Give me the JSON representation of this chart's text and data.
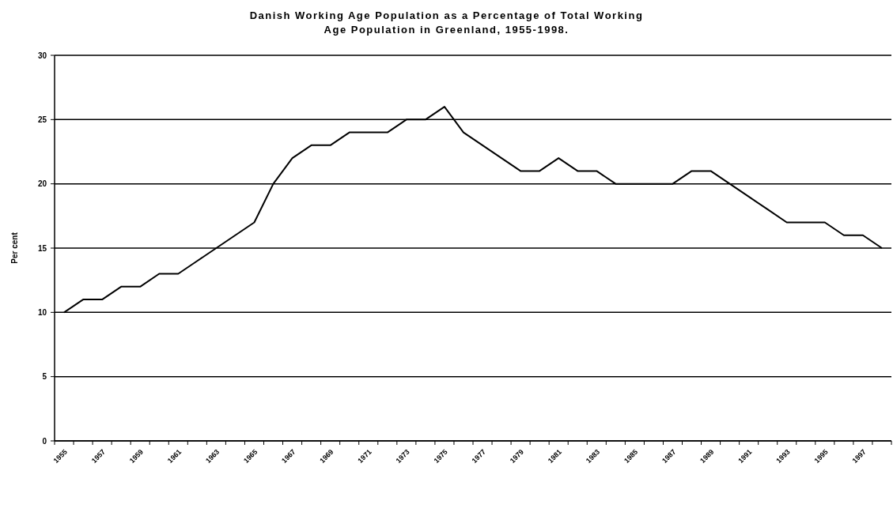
{
  "chart_data": {
    "type": "line",
    "title": "Danish Working Age Population as a Percentage of Total Working Age Population in Greenland, 1955-1998.",
    "ylabel": "Per cent",
    "categories": [
      "1955",
      null,
      "1957",
      null,
      "1959",
      null,
      "1961",
      null,
      "1963",
      null,
      "1965",
      null,
      "1967",
      null,
      "1969",
      null,
      "1971",
      null,
      "1973",
      null,
      "1975",
      null,
      "1977",
      null,
      "1979",
      null,
      "1981",
      null,
      "1983",
      null,
      "1985",
      null,
      "1987",
      null,
      "1989",
      null,
      "1991",
      null,
      "1993",
      null,
      "1995",
      null,
      "1997",
      null
    ],
    "series": [
      {
        "color": "#000000",
        "values": [
          10,
          11,
          11,
          12,
          12,
          13,
          13,
          14,
          15,
          16,
          17,
          20,
          22,
          23,
          23,
          24,
          24,
          24,
          25,
          25,
          26,
          24,
          23,
          22,
          21,
          21,
          22,
          21,
          21,
          20,
          20,
          20,
          20,
          21,
          21,
          20,
          19,
          18,
          17,
          17,
          17,
          16,
          16,
          15
        ]
      }
    ],
    "ylim": [
      0,
      30
    ],
    "yticks": [
      0,
      5,
      10,
      15,
      20,
      25,
      30
    ],
    "grid": "y",
    "marker": "none",
    "line_style": "solid"
  }
}
